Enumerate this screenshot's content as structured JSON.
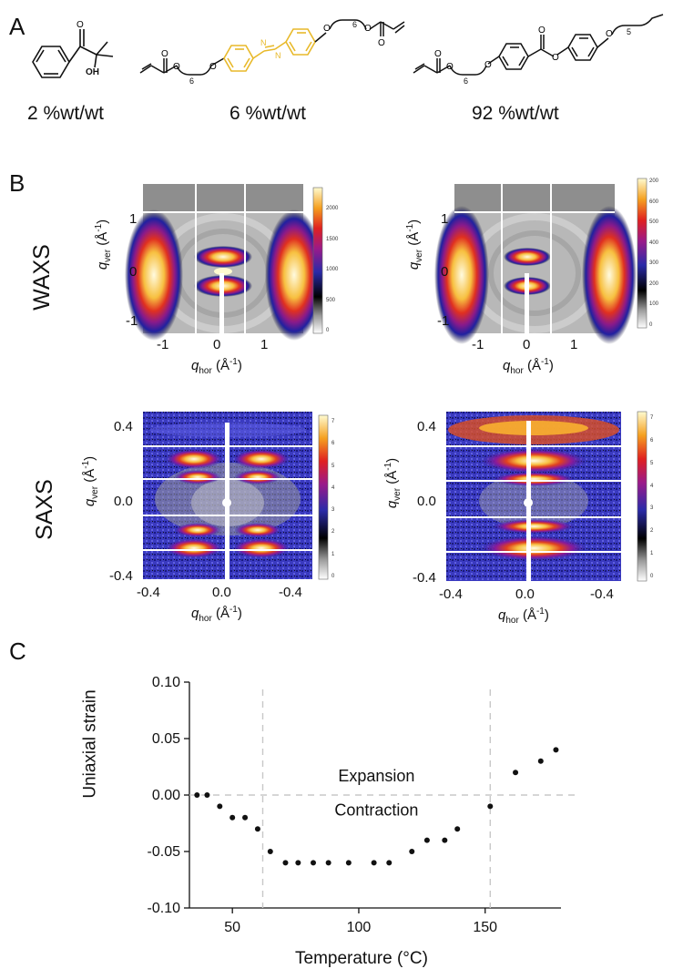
{
  "panels": {
    "a": "A",
    "b": "B",
    "c": "C"
  },
  "molecules": [
    {
      "concentration": "2 %wt/wt",
      "label_oh": "OH"
    },
    {
      "concentration": "6 %wt/wt",
      "sub6a": "6",
      "sub6b": "6"
    },
    {
      "concentration": "92 %wt/wt",
      "sub6": "6",
      "sub5": "5"
    }
  ],
  "colors": {
    "azo": "#e8b92a",
    "ink": "#111111",
    "dash": "#c8c8c8"
  },
  "scattering": {
    "waxs_label": "WAXS",
    "saxs_label": "SAXS",
    "qhor_main": "q",
    "qhor_sub": "hor",
    "qver_main": "q",
    "qver_sub": "ver",
    "unit": " (Å",
    "unit_exp": "-1",
    "unit_close": ")",
    "waxs_x_ticks": [
      "-1",
      "0",
      "1"
    ],
    "waxs_y_ticks": [
      "1",
      "0",
      "-1"
    ],
    "saxs_x_ticks": [
      "-0.4",
      "0.0",
      "-0.4"
    ],
    "saxs_y_ticks": [
      "0.4",
      "0.0",
      "-0.4"
    ],
    "cb_waxs_left": [
      "2000",
      "1500",
      "1000",
      "500",
      "0"
    ],
    "cb_waxs_right": [
      "200",
      "600",
      "500",
      "400",
      "300",
      "200",
      "100",
      "0"
    ],
    "cb_saxs_left": [
      "7",
      "6",
      "5",
      "4",
      "3",
      "2",
      "1",
      "0"
    ],
    "cb_saxs_right": [
      "7",
      "6",
      "5",
      "4",
      "3",
      "2",
      "1",
      "0"
    ]
  },
  "chart_data": {
    "type": "scatter",
    "title": "",
    "xlabel": "Temperature (°C)",
    "ylabel": "Uniaxial strain",
    "xlim": [
      33,
      180
    ],
    "ylim": [
      -0.1,
      0.1
    ],
    "x_ticks": [
      50,
      100,
      150
    ],
    "x_tick_labels": [
      "50",
      "100",
      "150"
    ],
    "y_ticks": [
      0.1,
      0.05,
      0.0,
      -0.05,
      -0.1
    ],
    "y_tick_labels": [
      "0.10",
      "0.05",
      "0.00",
      "-0.05",
      "-0.10"
    ],
    "vlines": [
      62,
      152
    ],
    "hline": 0.0,
    "annotations": [
      "Expansion",
      "Contraction"
    ],
    "series": [
      {
        "name": "strain",
        "x": [
          36,
          40,
          45,
          50,
          55,
          60,
          65,
          71,
          76,
          82,
          88,
          96,
          106,
          112,
          121,
          127,
          134,
          139,
          152,
          162,
          172,
          178
        ],
        "y": [
          0.0,
          0.0,
          -0.01,
          -0.02,
          -0.02,
          -0.03,
          -0.05,
          -0.06,
          -0.06,
          -0.06,
          -0.06,
          -0.06,
          -0.06,
          -0.06,
          -0.05,
          -0.04,
          -0.04,
          -0.03,
          -0.01,
          0.02,
          0.03,
          0.04
        ]
      }
    ]
  }
}
